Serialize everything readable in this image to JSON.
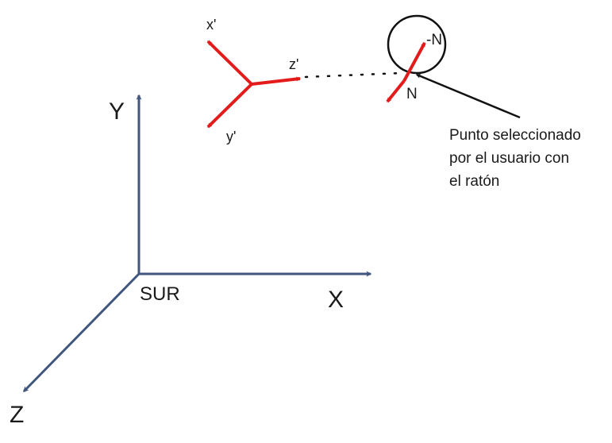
{
  "colors": {
    "world_axes": "#41567f",
    "local_axes": "#e31b1b",
    "outline": "#111111",
    "text": "#1a1a1a",
    "background": "#ffffff"
  },
  "world_frame": {
    "origin_label": "SUR",
    "x_label": "X",
    "y_label": "Y",
    "z_label": "Z"
  },
  "local_frame": {
    "x_label": "x'",
    "y_label": "y'",
    "z_label": "z'"
  },
  "selection": {
    "normal_label": "N",
    "negative_normal_label": "-N",
    "note_lines": [
      "Punto seleccionado",
      "por el usuario con",
      "el ratón"
    ]
  }
}
